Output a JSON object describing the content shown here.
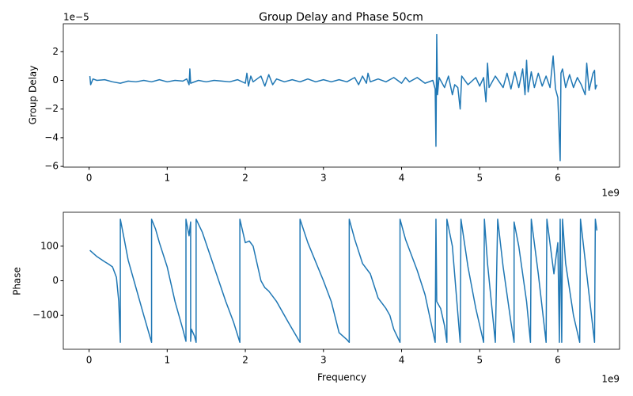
{
  "chart_data": [
    {
      "type": "line",
      "title": "Group Delay and Phase 50cm",
      "y_label": "Group Delay",
      "y_offset_label": "1e−5",
      "x_offset_label": "1e9",
      "xlim": [
        -0.33,
        6.79
      ],
      "xticks": [
        0,
        1,
        2,
        3,
        4,
        5,
        6
      ],
      "ylim": [
        -6.05,
        3.95
      ],
      "yticks": [
        {
          "value": -6,
          "label": "−6"
        },
        {
          "value": -4,
          "label": "−4"
        },
        {
          "value": -2,
          "label": "−2"
        },
        0,
        2
      ],
      "color": "#1f77b4",
      "x": [
        0.01,
        0.02,
        0.05,
        0.1,
        0.2,
        0.3,
        0.4,
        0.5,
        0.6,
        0.7,
        0.8,
        0.9,
        1.0,
        1.1,
        1.2,
        1.25,
        1.28,
        1.29,
        1.3,
        1.4,
        1.5,
        1.6,
        1.7,
        1.8,
        1.9,
        2.0,
        2.02,
        2.04,
        2.07,
        2.1,
        2.2,
        2.25,
        2.3,
        2.35,
        2.4,
        2.5,
        2.6,
        2.7,
        2.8,
        2.9,
        3.0,
        3.1,
        3.2,
        3.3,
        3.4,
        3.45,
        3.5,
        3.55,
        3.57,
        3.6,
        3.7,
        3.8,
        3.9,
        4.0,
        4.05,
        4.1,
        4.2,
        4.3,
        4.4,
        4.43,
        4.44,
        4.45,
        4.46,
        4.48,
        4.55,
        4.6,
        4.65,
        4.68,
        4.72,
        4.75,
        4.77,
        4.85,
        4.95,
        5.0,
        5.05,
        5.08,
        5.1,
        5.12,
        5.2,
        5.3,
        5.35,
        5.4,
        5.45,
        5.5,
        5.55,
        5.58,
        5.6,
        5.62,
        5.66,
        5.7,
        5.75,
        5.8,
        5.85,
        5.9,
        5.94,
        5.97,
        6.0,
        6.03,
        6.04,
        6.06,
        6.1,
        6.15,
        6.2,
        6.25,
        6.3,
        6.35,
        6.37,
        6.4,
        6.45,
        6.47,
        6.48,
        6.5
      ],
      "values": [
        0.3,
        -0.3,
        0.1,
        0,
        0.05,
        -0.1,
        -0.2,
        -0.05,
        -0.1,
        0,
        -0.1,
        0.05,
        -0.1,
        0,
        -0.05,
        0.1,
        -0.3,
        0.8,
        -0.2,
        0,
        -0.1,
        0,
        -0.05,
        -0.1,
        0.05,
        -0.2,
        0.5,
        -0.4,
        0.3,
        -0.1,
        0.3,
        -0.4,
        0.4,
        -0.3,
        0.1,
        -0.1,
        0.05,
        -0.1,
        0.1,
        -0.1,
        0.05,
        -0.1,
        0.05,
        -0.1,
        0.2,
        -0.3,
        0.3,
        -0.2,
        0.5,
        -0.1,
        0.1,
        -0.1,
        0.2,
        -0.2,
        0.2,
        -0.1,
        0.2,
        -0.2,
        0,
        -0.6,
        -4.6,
        3.2,
        -1.0,
        0.2,
        -0.5,
        0.3,
        -1.0,
        -0.3,
        -0.5,
        -2.0,
        0.3,
        -0.3,
        0.2,
        -0.4,
        0.2,
        -1.5,
        1.2,
        -0.5,
        0.3,
        -0.5,
        0.5,
        -0.6,
        0.6,
        -0.5,
        0.8,
        -1.0,
        1.4,
        -0.8,
        0.6,
        -0.5,
        0.5,
        -0.4,
        0.3,
        -0.5,
        1.7,
        -0.6,
        -1.2,
        -5.6,
        0.5,
        0.8,
        -0.5,
        0.4,
        -0.5,
        0.2,
        -0.3,
        -1.0,
        1.2,
        -0.7,
        0.5,
        0.7,
        -0.6,
        -0.3
      ]
    },
    {
      "type": "line",
      "x_label": "Frequency",
      "y_label": "Phase",
      "x_offset_label": "1e9",
      "xlim": [
        -0.33,
        6.79
      ],
      "xticks": [
        0,
        1,
        2,
        3,
        4,
        5,
        6
      ],
      "ylim": [
        -198,
        198
      ],
      "yticks": [
        {
          "value": -100,
          "label": "−100"
        },
        0,
        100
      ],
      "color": "#1f77b4",
      "x": [
        0.01,
        0.05,
        0.1,
        0.2,
        0.25,
        0.3,
        0.35,
        0.38,
        0.4,
        0.4,
        0.45,
        0.5,
        0.6,
        0.7,
        0.8,
        0.8,
        0.85,
        0.9,
        1.0,
        1.1,
        1.2,
        1.24,
        1.24,
        1.28,
        1.3,
        1.3,
        1.31,
        1.35,
        1.37,
        1.37,
        1.45,
        1.6,
        1.75,
        1.85,
        1.93,
        1.93,
        2.0,
        2.05,
        2.1,
        2.2,
        2.25,
        2.3,
        2.4,
        2.55,
        2.7,
        2.7,
        2.8,
        3.0,
        3.1,
        3.2,
        3.3,
        3.33,
        3.33,
        3.4,
        3.5,
        3.6,
        3.7,
        3.8,
        3.85,
        3.9,
        3.98,
        3.98,
        4.05,
        4.2,
        4.3,
        4.43,
        4.44,
        4.45,
        4.5,
        4.55,
        4.58,
        4.58,
        4.65,
        4.75,
        4.76,
        4.85,
        4.95,
        5.05,
        5.06,
        5.1,
        5.2,
        5.23,
        5.3,
        5.4,
        5.44,
        5.44,
        5.5,
        5.6,
        5.65,
        5.66,
        5.75,
        5.85,
        5.86,
        5.95,
        6.0,
        6.02,
        6.03,
        6.05,
        6.06,
        6.1,
        6.2,
        6.28,
        6.29,
        6.4,
        6.47,
        6.48,
        6.5
      ],
      "values": [
        88,
        80,
        70,
        55,
        48,
        40,
        10,
        -60,
        -178,
        178,
        120,
        60,
        -20,
        -100,
        -178,
        178,
        150,
        110,
        40,
        -60,
        -140,
        -175,
        178,
        130,
        170,
        -175,
        -140,
        -160,
        -178,
        178,
        140,
        40,
        -60,
        -120,
        -178,
        178,
        110,
        115,
        100,
        0,
        -20,
        -30,
        -60,
        -120,
        -178,
        178,
        110,
        0,
        -60,
        -150,
        -170,
        -178,
        178,
        120,
        50,
        20,
        -50,
        -80,
        -100,
        -140,
        -178,
        178,
        120,
        30,
        -40,
        -178,
        178,
        -60,
        -80,
        -130,
        -178,
        178,
        100,
        -178,
        178,
        40,
        -80,
        -178,
        178,
        50,
        -178,
        178,
        40,
        -120,
        -178,
        170,
        100,
        -60,
        -178,
        178,
        20,
        -178,
        178,
        20,
        110,
        -178,
        178,
        -178,
        178,
        50,
        -100,
        -178,
        178,
        -40,
        -178,
        178,
        145
      ]
    }
  ]
}
